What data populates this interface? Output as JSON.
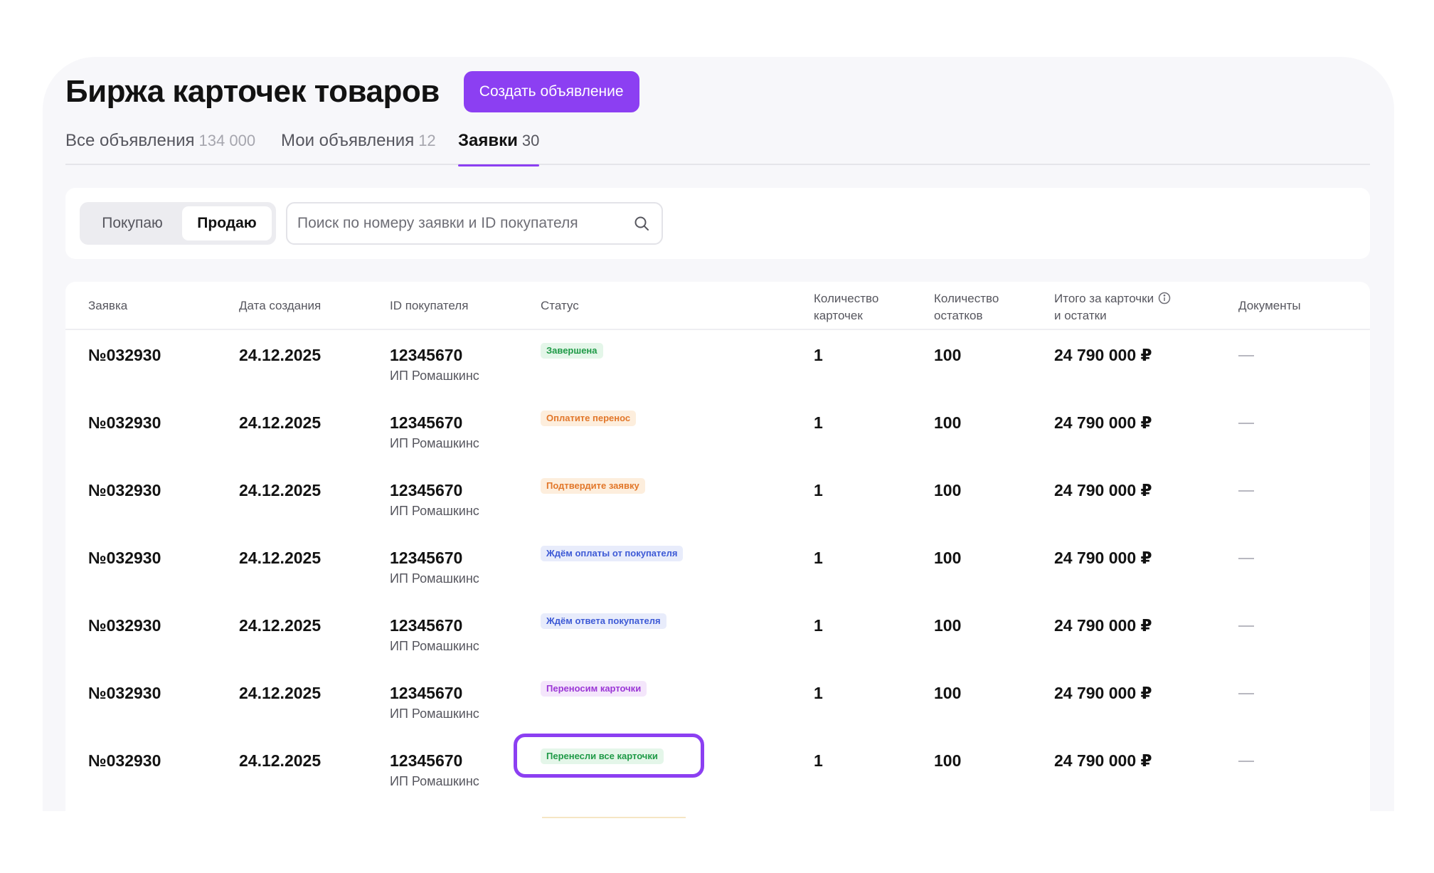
{
  "header": {
    "title": "Биржа карточек товаров",
    "create_button": "Создать объявление"
  },
  "tabs": [
    {
      "label": "Все объявления",
      "count": "134 000"
    },
    {
      "label": "Мои объявления",
      "count": "12"
    },
    {
      "label": "Заявки",
      "count": "30",
      "active": true
    }
  ],
  "filters": {
    "segments": [
      "Покупаю",
      "Продаю"
    ],
    "selected_segment": "Продаю",
    "search_placeholder": "Поиск по номеру заявки и ID покупателя"
  },
  "table": {
    "columns": {
      "request": "Заявка",
      "date": "Дата создания",
      "buyer": "ID покупателя",
      "status": "Статус",
      "cards_1": "Количество",
      "cards_2": "карточек",
      "stock_1": "Количество",
      "stock_2": "остатков",
      "total_1": "Итого за карточки",
      "total_2": "и остатки",
      "docs": "Документы"
    },
    "rows": [
      {
        "request": "№032930",
        "date": "24.12.2025",
        "buyer_id": "12345670",
        "buyer_name": "ИП Ромашкинс",
        "status": "Завершена",
        "status_color": "#1f9a47",
        "status_bg": "#e4f6e9",
        "cards": "1",
        "stock": "100",
        "total": "24 790 000 ₽"
      },
      {
        "request": "№032930",
        "date": "24.12.2025",
        "buyer_id": "12345670",
        "buyer_name": "ИП Ромашкинс",
        "status": "Оплатите перенос",
        "status_color": "#e2772a",
        "status_bg": "#fdeedd",
        "cards": "1",
        "stock": "100",
        "total": "24 790 000 ₽"
      },
      {
        "request": "№032930",
        "date": "24.12.2025",
        "buyer_id": "12345670",
        "buyer_name": "ИП Ромашкинс",
        "status": "Подтвердите заявку",
        "status_color": "#e2772a",
        "status_bg": "#fdeedd",
        "cards": "1",
        "stock": "100",
        "total": "24 790 000 ₽"
      },
      {
        "request": "№032930",
        "date": "24.12.2025",
        "buyer_id": "12345670",
        "buyer_name": "ИП Ромашкинс",
        "status": "Ждём оплаты от покупателя",
        "status_color": "#3d5ad6",
        "status_bg": "#e8ecfb",
        "cards": "1",
        "stock": "100",
        "total": "24 790 000 ₽"
      },
      {
        "request": "№032930",
        "date": "24.12.2025",
        "buyer_id": "12345670",
        "buyer_name": "ИП Ромашкинс",
        "status": "Ждём ответа покупателя",
        "status_color": "#3d5ad6",
        "status_bg": "#e8ecfb",
        "cards": "1",
        "stock": "100",
        "total": "24 790 000 ₽"
      },
      {
        "request": "№032930",
        "date": "24.12.2025",
        "buyer_id": "12345670",
        "buyer_name": "ИП Ромашкинс",
        "status": "Переносим карточки",
        "status_color": "#9b36d6",
        "status_bg": "#f4e6fb",
        "cards": "1",
        "stock": "100",
        "total": "24 790 000 ₽"
      },
      {
        "request": "№032930",
        "date": "24.12.2025",
        "buyer_id": "12345670",
        "buyer_name": "ИП Ромашкинс",
        "status": "Перенесли все карточки",
        "status_color": "#1f9a47",
        "status_bg": "#e4f6e9",
        "cards": "1",
        "stock": "100",
        "total": "24 790 000 ₽"
      }
    ]
  },
  "colors": {
    "accent": "#8c3ff2",
    "page_bg": "#f7f7fa",
    "card_bg": "#ffffff"
  }
}
